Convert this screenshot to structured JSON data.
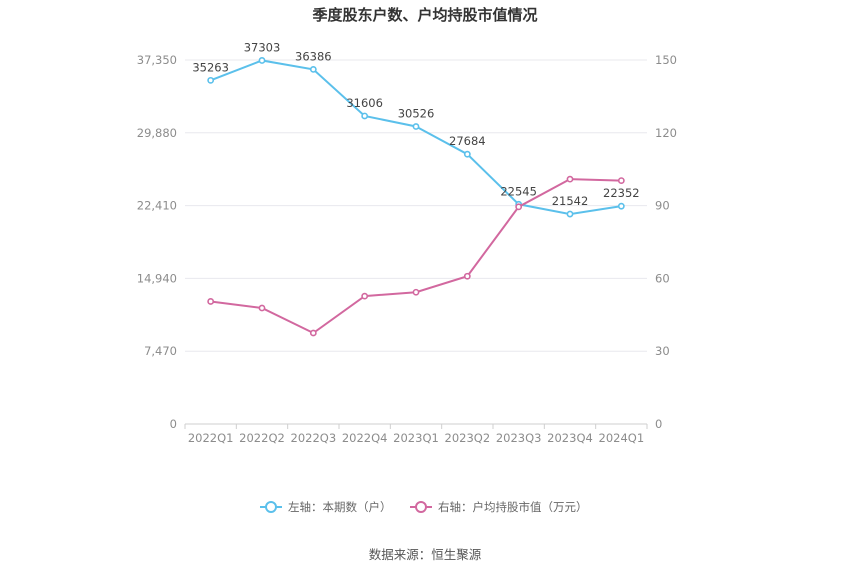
{
  "chart_data": {
    "type": "line",
    "title": "季度股东户数、户均持股市值情况",
    "categories": [
      "2022Q1",
      "2022Q2",
      "2022Q3",
      "2022Q4",
      "2023Q1",
      "2023Q2",
      "2023Q3",
      "2023Q4",
      "2024Q1"
    ],
    "series": [
      {
        "name": "左轴：本期数（户）",
        "axis": "left",
        "color": "#5bc0eb",
        "values": [
          35263,
          37303,
          36386,
          31606,
          30526,
          27684,
          22545,
          21542,
          22352
        ],
        "data_labels": [
          "35263",
          "37303",
          "36386",
          "31606",
          "30526",
          "27684",
          "22545",
          "21542",
          "22352"
        ]
      },
      {
        "name": "右轴：户均持股市值（万元）",
        "axis": "right",
        "color": "#d2689f",
        "values": [
          50.5,
          47.8,
          37.5,
          52.7,
          54.3,
          60.9,
          89.5,
          100.9,
          100.3
        ]
      }
    ],
    "y_left": {
      "ylim": [
        0,
        37350
      ],
      "ticks": [
        0,
        7470,
        14940,
        22410,
        29880,
        37350
      ],
      "tick_labels": [
        "0",
        "7,470",
        "14,940",
        "22,410",
        "29,880",
        "37,350"
      ]
    },
    "y_right": {
      "ylim": [
        0,
        150
      ],
      "ticks": [
        0,
        30,
        60,
        90,
        120,
        150
      ],
      "tick_labels": [
        "0",
        "30",
        "60",
        "90",
        "120",
        "150"
      ]
    },
    "grid": true,
    "legend_position": "bottom",
    "source": "数据来源：恒生聚源"
  }
}
